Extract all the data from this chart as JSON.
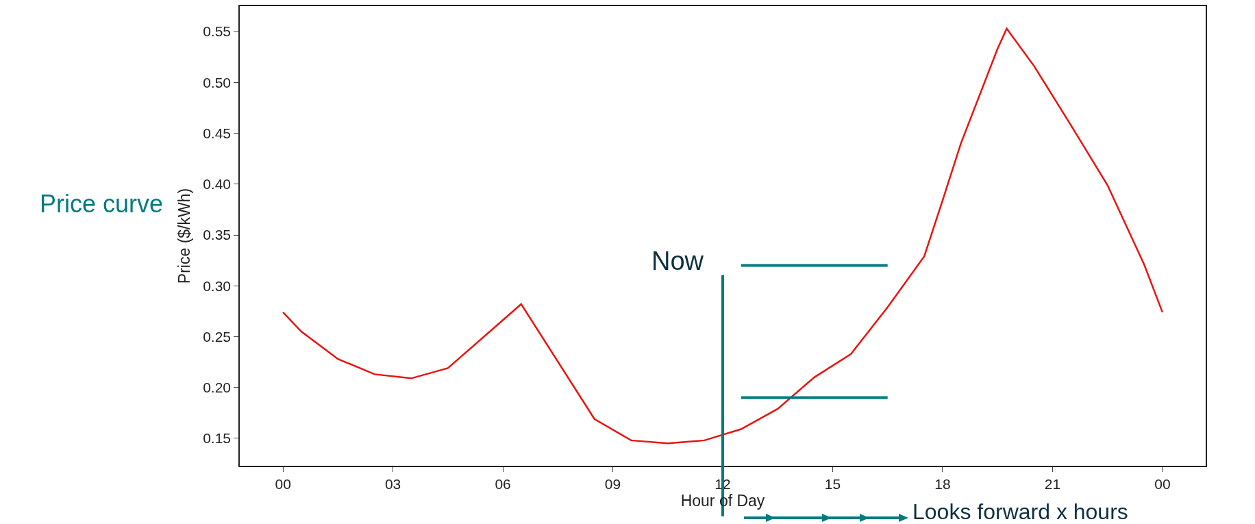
{
  "chart_data": {
    "type": "line",
    "xlabel": "Hour of Day",
    "ylabel": "Price ($/kWh)",
    "x": [
      0,
      0.5,
      1.5,
      2.5,
      3.5,
      4.5,
      6.5,
      8.5,
      9.5,
      10.5,
      11.5,
      12.5,
      13.5,
      14.5,
      15.5,
      16.5,
      17.5,
      18,
      18.5,
      19.5,
      19.75,
      20.5,
      21.5,
      22.5,
      23.5,
      24
    ],
    "series": [
      {
        "color": "#e8140e",
        "values": [
          0.274,
          0.255,
          0.228,
          0.213,
          0.209,
          0.219,
          0.282,
          0.169,
          0.148,
          0.145,
          0.148,
          0.159,
          0.179,
          0.21,
          0.233,
          0.279,
          0.329,
          0.384,
          0.44,
          0.533,
          0.553,
          0.516,
          0.458,
          0.399,
          0.321,
          0.274
        ]
      },
      {
        "color": "#007b7f",
        "values": [
          null,
          null,
          null,
          null,
          null,
          null,
          null,
          null,
          null,
          null,
          null,
          0.32,
          0.32,
          0.32,
          0.32,
          0.32,
          null,
          null,
          null,
          null,
          null,
          null,
          null,
          null,
          null,
          null
        ]
      },
      {
        "color": "#007b7f",
        "values": [
          null,
          null,
          null,
          null,
          null,
          null,
          null,
          null,
          null,
          null,
          null,
          0.19,
          0.19,
          0.19,
          0.19,
          0.19,
          null,
          null,
          null,
          null,
          null,
          null,
          null,
          null,
          null,
          null
        ]
      }
    ],
    "xlim": [
      -1.18,
      25.18
    ],
    "ylim": [
      0.123,
      0.575
    ],
    "xticks": [
      {
        "value": 0,
        "label": "00"
      },
      {
        "value": 3,
        "label": "03"
      },
      {
        "value": 6,
        "label": "06"
      },
      {
        "value": 9,
        "label": "09"
      },
      {
        "value": 12,
        "label": "12"
      },
      {
        "value": 15,
        "label": "15"
      },
      {
        "value": 18,
        "label": "18"
      },
      {
        "value": 21,
        "label": "21"
      },
      {
        "value": 24,
        "label": "00"
      }
    ],
    "yticks": [
      0.15,
      {
        "value": 0.2,
        "label": "0.20"
      },
      0.25,
      {
        "value": 0.3,
        "label": "0.30"
      },
      0.35,
      {
        "value": 0.4,
        "label": "0.40"
      },
      0.45,
      {
        "value": 0.5,
        "label": "0.50"
      },
      0.55
    ],
    "ref_lines": [
      {
        "axis": "x",
        "value": 12,
        "label": "Now",
        "color": "#007b7f"
      }
    ],
    "annotations": [
      "Price curve",
      "Looks forward x hours"
    ],
    "grid": false,
    "marker": "none",
    "line_style": "solid"
  }
}
